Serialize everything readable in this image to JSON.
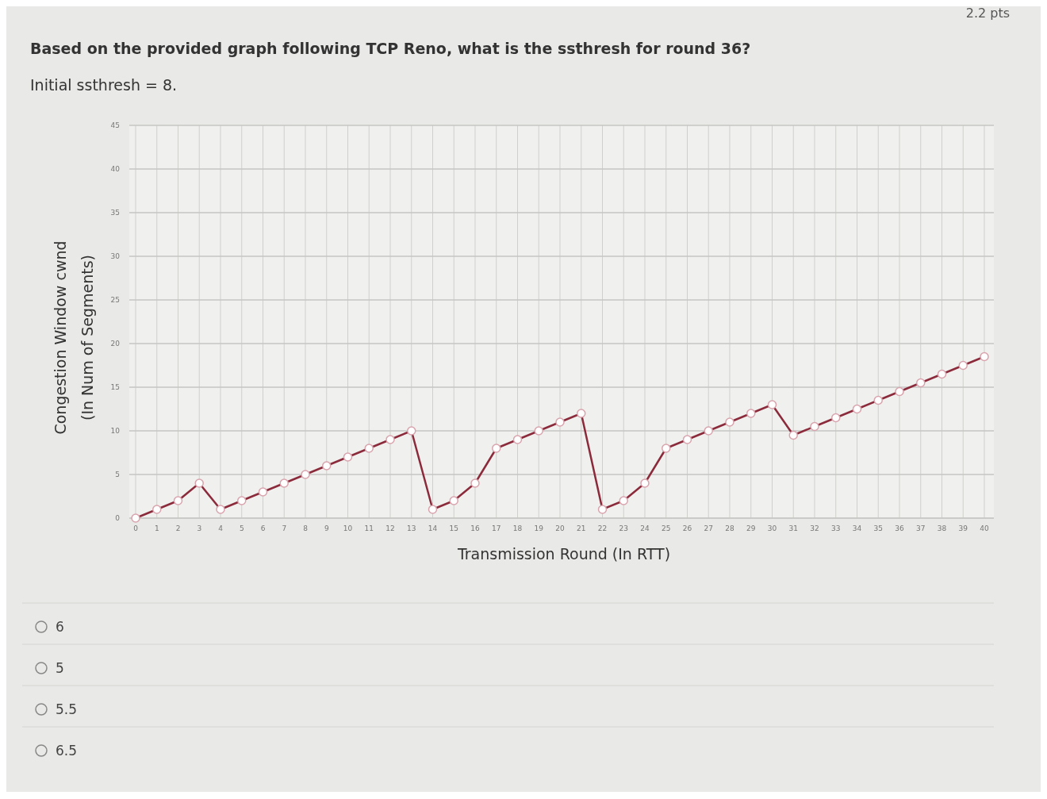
{
  "chart_data": {
    "type": "line",
    "title": "Based on the provided graph following TCP Reno, what is the ssthresh for round 36?",
    "subtitle": "Initial ssthresh = 8.",
    "xlabel": "Transmission Round (In RTT)",
    "ylabel": "Congestion Window cwnd\n(In Num of Segments)",
    "x": [
      0,
      1,
      2,
      3,
      4,
      5,
      6,
      7,
      8,
      9,
      10,
      11,
      12,
      13,
      14,
      15,
      16,
      17,
      18,
      19,
      20,
      21,
      22,
      23,
      24,
      25,
      26,
      27,
      28,
      29,
      30,
      31,
      32,
      33,
      34,
      35,
      36,
      37,
      38,
      39,
      40
    ],
    "series": [
      {
        "color": "#8b2a3a",
        "values": [
          0,
          1,
          2,
          4,
          1,
          2,
          3,
          4,
          5,
          6,
          7,
          8,
          9,
          10,
          1,
          2,
          4,
          8,
          9,
          10,
          11,
          12,
          1,
          2,
          4,
          8,
          9,
          10,
          11,
          12,
          13,
          9.5,
          10.5,
          11.5,
          12.5,
          13.5,
          14.5,
          15.5,
          16.5,
          17.5,
          18.5
        ]
      }
    ],
    "xlim": [
      0,
      40
    ],
    "xticks": [
      0,
      1,
      2,
      3,
      4,
      5,
      6,
      7,
      8,
      9,
      10,
      11,
      12,
      13,
      14,
      15,
      16,
      17,
      18,
      19,
      20,
      21,
      22,
      23,
      24,
      25,
      26,
      27,
      28,
      29,
      30,
      31,
      32,
      33,
      34,
      35,
      36,
      37,
      38,
      39,
      40
    ],
    "ylim": [
      0,
      45
    ],
    "yticks": [
      0,
      5,
      10,
      15,
      20,
      25,
      30,
      35,
      40,
      45
    ],
    "grid": true,
    "marker": "circle",
    "line_style": "solid",
    "annotations": [
      "2.2 pts",
      "6",
      "5",
      "5.5",
      "6.5"
    ]
  }
}
